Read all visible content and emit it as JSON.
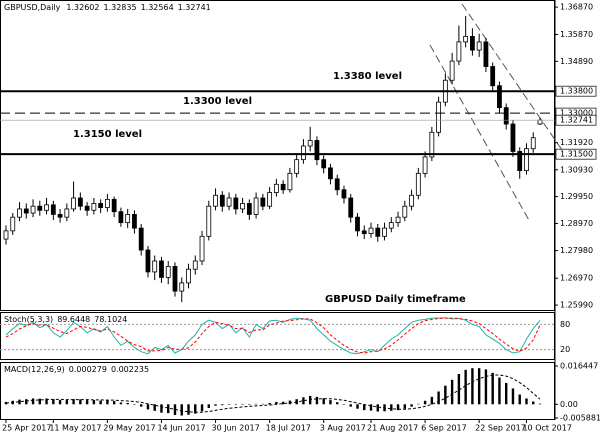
{
  "chart_data": {
    "type": "candlestick",
    "title": "GBPUSD,Daily",
    "annotation": "GBPUSD Daily timeframe",
    "candles": {
      "open": [
        1.284,
        1.287,
        1.292,
        1.295,
        1.2935,
        1.296,
        1.2945,
        1.2965,
        1.293,
        1.292,
        1.295,
        1.299,
        1.296,
        1.2945,
        1.297,
        1.2955,
        1.2985,
        1.294,
        1.29,
        1.293,
        1.288,
        1.28,
        1.272,
        1.276,
        1.27,
        1.274,
        1.265,
        1.268,
        1.273,
        1.276,
        1.285,
        1.296,
        1.3,
        1.296,
        1.299,
        1.295,
        1.297,
        1.293,
        1.299,
        1.296,
        1.301,
        1.304,
        1.302,
        1.308,
        1.313,
        1.318,
        1.32,
        1.313,
        1.31,
        1.306,
        1.302,
        1.299,
        1.292,
        1.287,
        1.286,
        1.288,
        1.285,
        1.288,
        1.29,
        1.292,
        1.296,
        1.3,
        1.308,
        1.314,
        1.323,
        1.334,
        1.342,
        1.349,
        1.356,
        1.358,
        1.353,
        1.356,
        1.347,
        1.34,
        1.332,
        1.326,
        1.316,
        1.309,
        1.317,
        1.32602
      ],
      "high": [
        1.289,
        1.2935,
        1.2975,
        1.297,
        1.2985,
        1.298,
        1.299,
        1.298,
        1.295,
        1.297,
        1.305,
        1.301,
        1.2975,
        1.299,
        1.2985,
        1.3005,
        1.2995,
        1.2955,
        1.295,
        1.2945,
        1.2895,
        1.2815,
        1.278,
        1.2775,
        1.276,
        1.2755,
        1.27,
        1.275,
        1.278,
        1.287,
        1.298,
        1.3025,
        1.3015,
        1.301,
        1.3005,
        1.299,
        1.2985,
        1.301,
        1.3005,
        1.303,
        1.306,
        1.3055,
        1.31,
        1.315,
        1.3205,
        1.325,
        1.3215,
        1.3145,
        1.3115,
        1.3075,
        1.3035,
        1.3005,
        1.2935,
        1.289,
        1.29,
        1.2895,
        1.29,
        1.292,
        1.294,
        1.298,
        1.302,
        1.31,
        1.316,
        1.325,
        1.336,
        1.3445,
        1.352,
        1.362,
        1.3655,
        1.361,
        1.359,
        1.3575,
        1.3485,
        1.3415,
        1.3335,
        1.3275,
        1.3175,
        1.319,
        1.323,
        1.32835
      ],
      "low": [
        1.282,
        1.2855,
        1.2905,
        1.2915,
        1.292,
        1.2925,
        1.293,
        1.291,
        1.29,
        1.2905,
        1.294,
        1.2945,
        1.2925,
        1.293,
        1.2935,
        1.294,
        1.292,
        1.2885,
        1.288,
        1.286,
        1.278,
        1.27,
        1.269,
        1.268,
        1.2675,
        1.263,
        1.261,
        1.266,
        1.271,
        1.2745,
        1.2835,
        1.2945,
        1.294,
        1.2945,
        1.293,
        1.2935,
        1.291,
        1.2915,
        1.2945,
        1.295,
        1.2995,
        1.3005,
        1.301,
        1.3065,
        1.3115,
        1.316,
        1.311,
        1.308,
        1.304,
        1.3,
        1.297,
        1.29,
        1.285,
        1.284,
        1.2845,
        1.283,
        1.2835,
        1.2865,
        1.2885,
        1.2905,
        1.2945,
        1.2985,
        1.3065,
        1.3125,
        1.3215,
        1.3325,
        1.3405,
        1.3475,
        1.354,
        1.351,
        1.3505,
        1.345,
        1.338,
        1.33,
        1.324,
        1.314,
        1.306,
        1.3075,
        1.3155,
        1.32564
      ],
      "close": [
        1.287,
        1.292,
        1.295,
        1.2935,
        1.296,
        1.2945,
        1.2965,
        1.293,
        1.292,
        1.295,
        1.299,
        1.296,
        1.2945,
        1.297,
        1.2955,
        1.2985,
        1.294,
        1.29,
        1.293,
        1.288,
        1.28,
        1.272,
        1.276,
        1.27,
        1.274,
        1.265,
        1.268,
        1.273,
        1.276,
        1.285,
        1.296,
        1.3,
        1.296,
        1.299,
        1.295,
        1.297,
        1.293,
        1.299,
        1.296,
        1.301,
        1.304,
        1.302,
        1.308,
        1.313,
        1.318,
        1.32,
        1.313,
        1.31,
        1.306,
        1.302,
        1.299,
        1.292,
        1.287,
        1.286,
        1.288,
        1.285,
        1.288,
        1.29,
        1.292,
        1.296,
        1.3,
        1.308,
        1.314,
        1.323,
        1.334,
        1.342,
        1.349,
        1.356,
        1.358,
        1.353,
        1.356,
        1.347,
        1.34,
        1.332,
        1.326,
        1.316,
        1.309,
        1.317,
        1.321,
        1.32741
      ]
    },
    "ylim": [
      1.2581,
      1.3713
    ],
    "yticks": [
      {
        "value": 1.3687,
        "label": "1.36870"
      },
      {
        "value": 1.3587,
        "label": "1.35870"
      },
      {
        "value": 1.3489,
        "label": "1.34890"
      },
      {
        "value": 1.3192,
        "label": "1.31920"
      },
      {
        "value": 1.3093,
        "label": "1.30930"
      },
      {
        "value": 1.2995,
        "label": "1.29950"
      },
      {
        "value": 1.2897,
        "label": "1.28970"
      },
      {
        "value": 1.2798,
        "label": "1.27980"
      },
      {
        "value": 1.2697,
        "label": "1.26970"
      },
      {
        "value": 1.2599,
        "label": "1.25990"
      }
    ],
    "levels": [
      {
        "value": 1.338,
        "label": "1.3380 level",
        "axis_label": "1.33800",
        "style": "solid"
      },
      {
        "value": 1.33,
        "label": "1.3300 level",
        "axis_label": "1.33000",
        "style": "dashed"
      },
      {
        "value": 1.315,
        "label": "1.3150 level",
        "axis_label": "1.31500",
        "style": "solid"
      }
    ],
    "xticks": [
      {
        "value": 0,
        "label": "25 Apr 2017"
      },
      {
        "value": 7,
        "label": "11 May 2017"
      },
      {
        "value": 15,
        "label": "29 May 2017"
      },
      {
        "value": 23,
        "label": "14 Jun 2017"
      },
      {
        "value": 31,
        "label": "30 Jun 2017"
      },
      {
        "value": 39,
        "label": "18 Jul 2017"
      },
      {
        "value": 47,
        "label": "3 Aug 2017"
      },
      {
        "value": 54,
        "label": "21 Aug 2017"
      },
      {
        "value": 62,
        "label": "6 Sep 2017"
      },
      {
        "value": 70,
        "label": "22 Sep 2017"
      },
      {
        "value": 77,
        "label": "10 Oct 2017"
      }
    ],
    "indicators": [
      {
        "title": "Stoch(5,3,3)",
        "ylim": [
          0,
          100
        ],
        "yticks": [
          20,
          80
        ],
        "grid": true,
        "series": [
          {
            "type": "line",
            "color": "#20b2aa",
            "dash": false,
            "values": [
              55,
              70,
              82,
              78,
              85,
              72,
              80,
              60,
              50,
              65,
              85,
              75,
              60,
              70,
              62,
              75,
              50,
              30,
              40,
              25,
              15,
              10,
              25,
              20,
              30,
              12,
              20,
              40,
              55,
              80,
              90,
              85,
              70,
              80,
              60,
              72,
              50,
              80,
              70,
              88,
              90,
              85,
              92,
              95,
              93,
              90,
              70,
              55,
              40,
              30,
              20,
              12,
              10,
              15,
              20,
              15,
              30,
              45,
              55,
              70,
              85,
              90,
              92,
              95,
              95,
              96,
              93,
              94,
              90,
              80,
              75,
              55,
              45,
              35,
              20,
              12,
              15,
              45,
              70,
              89.6448
            ]
          },
          {
            "type": "line",
            "color": "#ff0000",
            "dash": true,
            "values": [
              50,
              58,
              69,
              77,
              82,
              78,
              79,
              71,
              63,
              58,
              67,
              75,
              73,
              68,
              64,
              69,
              62,
              52,
              40,
              32,
              27,
              17,
              17,
              18,
              25,
              21,
              21,
              24,
              38,
              58,
              75,
              85,
              82,
              78,
              70,
              71,
              61,
              67,
              67,
              79,
              83,
              88,
              89,
              91,
              93,
              93,
              84,
              72,
              55,
              42,
              30,
              21,
              14,
              12,
              15,
              17,
              22,
              30,
              43,
              57,
              70,
              82,
              89,
              92,
              94,
              95,
              95,
              94,
              92,
              88,
              82,
              70,
              58,
              45,
              33,
              22,
              16,
              24,
              43,
              78.1024
            ]
          }
        ]
      },
      {
        "title": "MACD(12,26,9)",
        "ylim": [
          -0.005881,
          0.016447
        ],
        "yticks": [
          0.016447,
          {
            "value": 0,
            "label": "0.00"
          },
          -0.005881
        ],
        "grid": false,
        "series": [
          {
            "type": "bar",
            "color": "#000000",
            "values": [
              0.001,
              0.0015,
              0.002,
              0.0022,
              0.0025,
              0.0024,
              0.0025,
              0.0022,
              0.0018,
              0.0018,
              0.0022,
              0.0021,
              0.0018,
              0.0018,
              0.0016,
              0.0018,
              0.0014,
              0.0008,
              0.0006,
              0.0001,
              -0.001,
              -0.0022,
              -0.0028,
              -0.0036,
              -0.0038,
              -0.0046,
              -0.0048,
              -0.0045,
              -0.004,
              -0.003,
              -0.0016,
              -0.0006,
              -0.0004,
              -0.0001,
              -0.0002,
              0.0,
              -0.0002,
              0.0002,
              0.0002,
              0.0006,
              0.001,
              0.0011,
              0.0016,
              0.0022,
              0.003,
              0.0036,
              0.0032,
              0.0026,
              0.0018,
              0.0009,
              0.0,
              -0.001,
              -0.0019,
              -0.0025,
              -0.0027,
              -0.0031,
              -0.003,
              -0.0028,
              -0.0025,
              -0.0019,
              -0.001,
              0.0002,
              0.0015,
              0.0032,
              0.0055,
              0.008,
              0.0105,
              0.013,
              0.0148,
              0.0155,
              0.0155,
              0.015,
              0.0135,
              0.0115,
              0.0092,
              0.0068,
              0.0042,
              0.0025,
              0.0012,
              0.000279
            ]
          },
          {
            "type": "line",
            "color": "#000000",
            "dash": true,
            "values": [
              0.0005,
              0.0008,
              0.0011,
              0.0014,
              0.0017,
              0.0019,
              0.002,
              0.0021,
              0.0021,
              0.002,
              0.002,
              0.002,
              0.002,
              0.0019,
              0.0019,
              0.0018,
              0.0018,
              0.0016,
              0.0014,
              0.0012,
              0.0008,
              0.0002,
              -0.0004,
              -0.001,
              -0.0016,
              -0.0022,
              -0.0028,
              -0.0032,
              -0.0034,
              -0.0034,
              -0.0031,
              -0.0026,
              -0.0021,
              -0.0017,
              -0.0014,
              -0.0011,
              -0.0009,
              -0.0007,
              -0.0005,
              -0.0003,
              0.0,
              0.0003,
              0.0006,
              0.001,
              0.0015,
              0.002,
              0.0023,
              0.0024,
              0.0024,
              0.0021,
              0.0017,
              0.0011,
              0.0005,
              -0.0001,
              -0.0007,
              -0.0012,
              -0.0016,
              -0.0019,
              -0.0021,
              -0.0021,
              -0.0019,
              -0.0015,
              -0.0009,
              0.0,
              0.0012,
              0.0026,
              0.0043,
              0.0061,
              0.008,
              0.0097,
              0.011,
              0.012,
              0.0126,
              0.0126,
              0.0121,
              0.011,
              0.0093,
              0.0072,
              0.0047,
              0.002235
            ]
          }
        ]
      }
    ]
  }
}
